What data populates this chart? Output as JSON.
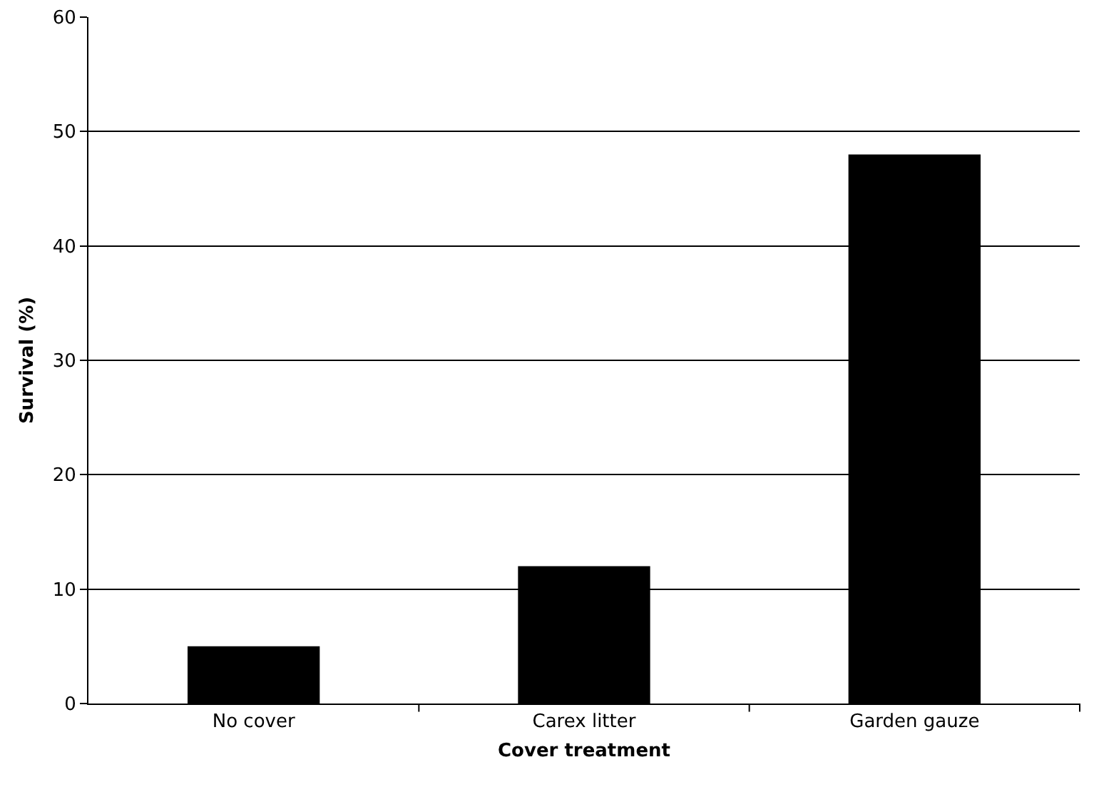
{
  "chart_data": {
    "type": "bar",
    "xlabel": "Cover treatment",
    "ylabel": "Survival (%)",
    "categories": [
      "No cover",
      "Carex litter",
      "Garden gauze"
    ],
    "values": [
      5,
      12,
      48
    ],
    "color": "#000000",
    "ylim": [
      0,
      60
    ],
    "yticks": [
      0,
      10,
      20,
      30,
      40,
      50,
      60
    ],
    "grid": "y"
  }
}
